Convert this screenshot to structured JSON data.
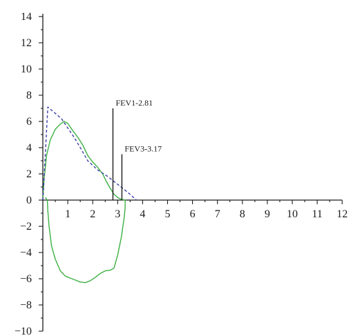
{
  "chart_data": {
    "type": "line",
    "title": "",
    "xlabel": "",
    "ylabel": "",
    "xlim": [
      0,
      12
    ],
    "ylim": [
      -10,
      14
    ],
    "x_ticks": [
      1,
      2,
      3,
      4,
      5,
      6,
      7,
      8,
      9,
      10,
      11,
      12
    ],
    "x_tick_labels": [
      "1",
      "2",
      "3",
      "4",
      "5",
      "6",
      "7",
      "8",
      "9",
      "10",
      "11",
      "12"
    ],
    "y_ticks": [
      -10,
      -8,
      -6,
      -4,
      -2,
      0,
      2,
      4,
      6,
      8,
      10,
      12,
      14
    ],
    "y_tick_labels": [
      "−10",
      "−8",
      "−6",
      "−4",
      "−2",
      "0",
      "2",
      "4",
      "6",
      "8",
      "10",
      "12",
      "14"
    ],
    "grid": false,
    "legend": "none",
    "series": [
      {
        "style": "solid",
        "color": "#3cb043",
        "points": [
          [
            0.0,
            0.0
          ],
          [
            0.05,
            1.6
          ],
          [
            0.15,
            3.4
          ],
          [
            0.3,
            4.6
          ],
          [
            0.5,
            5.4
          ],
          [
            0.7,
            5.8
          ],
          [
            0.85,
            6.0
          ],
          [
            1.0,
            5.85
          ],
          [
            1.2,
            5.3
          ],
          [
            1.4,
            4.8
          ],
          [
            1.6,
            4.2
          ],
          [
            1.8,
            3.4
          ],
          [
            2.0,
            2.9
          ],
          [
            2.2,
            2.5
          ],
          [
            2.4,
            2.0
          ],
          [
            2.55,
            1.4
          ],
          [
            2.7,
            0.9
          ],
          [
            2.85,
            0.45
          ],
          [
            3.0,
            0.2
          ],
          [
            3.15,
            0.05
          ],
          [
            3.3,
            0.0
          ],
          [
            3.3,
            -0.6
          ],
          [
            3.25,
            -1.5
          ],
          [
            3.15,
            -2.8
          ],
          [
            3.0,
            -4.2
          ],
          [
            2.85,
            -5.2
          ],
          [
            2.7,
            -5.35
          ],
          [
            2.5,
            -5.4
          ],
          [
            2.3,
            -5.6
          ],
          [
            2.1,
            -5.9
          ],
          [
            1.9,
            -6.15
          ],
          [
            1.7,
            -6.3
          ],
          [
            1.5,
            -6.25
          ],
          [
            1.3,
            -6.1
          ],
          [
            1.1,
            -5.95
          ],
          [
            0.9,
            -5.8
          ],
          [
            0.7,
            -5.4
          ],
          [
            0.5,
            -4.5
          ],
          [
            0.35,
            -3.5
          ],
          [
            0.25,
            -2.0
          ],
          [
            0.2,
            -0.8
          ],
          [
            0.18,
            0.0
          ],
          [
            0.1,
            0.2
          ]
        ]
      },
      {
        "style": "dashed",
        "color": "#3b3fa8",
        "points": [
          [
            0.0,
            0.0
          ],
          [
            0.1,
            3.5
          ],
          [
            0.2,
            7.1
          ],
          [
            0.45,
            6.7
          ],
          [
            0.75,
            6.2
          ],
          [
            1.0,
            5.5
          ],
          [
            1.25,
            4.8
          ],
          [
            1.5,
            4.0
          ],
          [
            1.8,
            3.0
          ],
          [
            2.2,
            2.3
          ],
          [
            2.6,
            1.8
          ],
          [
            3.0,
            1.2
          ],
          [
            3.4,
            0.6
          ],
          [
            3.75,
            0.0
          ]
        ]
      }
    ],
    "annotations": [
      {
        "label": "FEV1-2.81",
        "x": 2.81,
        "y_top": 7.0
      },
      {
        "label": "FEV3-3.17",
        "x": 3.17,
        "y_top": 3.5
      }
    ]
  }
}
